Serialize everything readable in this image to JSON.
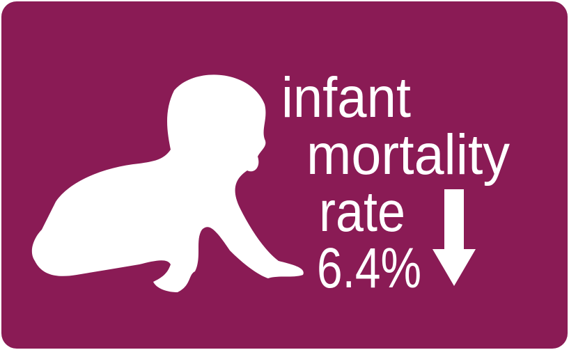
{
  "headline": {
    "lines": [
      "infant",
      "mortality",
      "rate"
    ],
    "stat": "6.4%"
  }
}
